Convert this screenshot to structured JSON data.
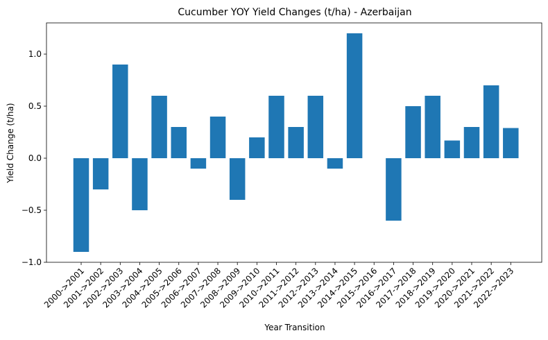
{
  "chart_data": {
    "type": "bar",
    "title": "Cucumber YOY Yield Changes (t/ha) - Azerbaijan",
    "xlabel": "Year Transition",
    "ylabel": "Yield Change (t/ha)",
    "ylim": [
      -1.0,
      1.3
    ],
    "yticks": [
      -1.0,
      -0.5,
      0.0,
      0.5,
      1.0
    ],
    "ytick_labels": [
      "−1.0",
      "−0.5",
      "0.0",
      "0.5",
      "1.0"
    ],
    "grid": false,
    "bar_color": "#1f77b4",
    "categories": [
      "2000->2001",
      "2001->2002",
      "2002->2003",
      "2003->2004",
      "2004->2005",
      "2005->2006",
      "2006->2007",
      "2007->2008",
      "2008->2009",
      "2009->2010",
      "2010->2011",
      "2011->2012",
      "2012->2013",
      "2013->2014",
      "2014->2015",
      "2015->2016",
      "2016->2017",
      "2017->2018",
      "2018->2019",
      "2019->2020",
      "2020->2021",
      "2021->2022",
      "2022->2023"
    ],
    "values": [
      -0.9,
      -0.3,
      0.9,
      -0.5,
      0.6,
      0.3,
      -0.1,
      0.4,
      -0.4,
      0.2,
      0.6,
      0.3,
      0.6,
      -0.1,
      1.2,
      0.0,
      -0.6,
      0.5,
      0.6,
      0.17,
      0.3,
      0.7,
      0.29
    ]
  }
}
